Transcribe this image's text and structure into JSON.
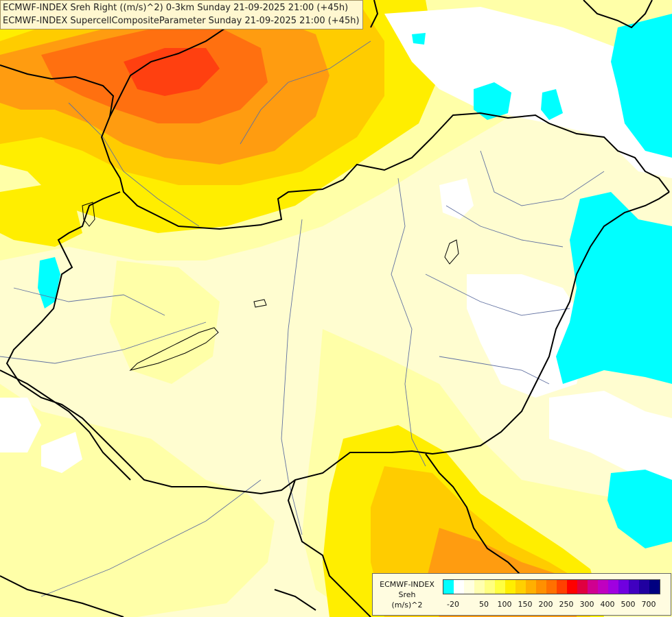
{
  "titles": {
    "line1": "ECMWF-INDEX Sreh Right ((m/s)^2) 0-3km Sunday 21-09-2025 21:00 (+45h)",
    "line2": "ECMWF-INDEX SupercellCompositeParameter Sunday 21-09-2025 21:00 (+45h)"
  },
  "legend": {
    "label_line1": "ECMWF-INDEX",
    "label_line2": "Sreh",
    "label_line3": "(m/s)^2",
    "colors": [
      "#00ffff",
      "#ffffff",
      "#ffffe0",
      "#ffffb0",
      "#ffff80",
      "#ffff40",
      "#ffee00",
      "#ffd000",
      "#ffb000",
      "#ff9000",
      "#ff7000",
      "#ff4000",
      "#ff0000",
      "#e00040",
      "#d00090",
      "#c000c0",
      "#a000e0",
      "#7000e0",
      "#4000c0",
      "#2000a0",
      "#000080"
    ],
    "ticks": [
      "-20",
      "50",
      "100",
      "150",
      "200",
      "250",
      "300",
      "400",
      "500",
      "700"
    ]
  },
  "map_colors": {
    "base": "#fffdd0",
    "light_yellow": "#ffffa8",
    "yellow": "#ffee00",
    "gold": "#ffcc00",
    "orange": "#ff9c10",
    "deep_orange": "#ff7010",
    "red_orange": "#ff4010",
    "cyan": "#00ffff",
    "white": "#ffffff",
    "border": "#000000",
    "river": "#6070a0"
  }
}
